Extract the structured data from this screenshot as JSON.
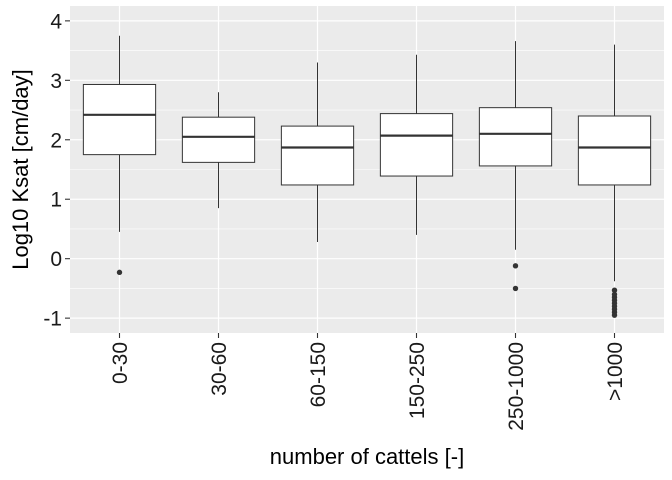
{
  "chart_data": {
    "type": "boxplot",
    "xlabel": "number of cattels [-]",
    "ylabel": "Log10 Ksat [cm/day]",
    "ylim": [
      -1.25,
      4.25
    ],
    "yticks": [
      -1,
      0,
      1,
      2,
      3,
      4
    ],
    "ytick_labels": [
      "-1",
      "0",
      "1",
      "2",
      "3",
      "4"
    ],
    "grid": true,
    "background": "#ebebeb",
    "grid_color": "#ffffff",
    "box_fill": "#ffffff",
    "line_color": "#333333",
    "categories": [
      "0-30",
      "30-60",
      "60-150",
      "150-250",
      "250-1000",
      ">1000"
    ],
    "boxes": [
      {
        "category": "0-30",
        "whisker_low": 0.45,
        "q1": 1.75,
        "median": 2.42,
        "q3": 2.93,
        "whisker_high": 3.75,
        "outliers": [
          -0.23
        ]
      },
      {
        "category": "30-60",
        "whisker_low": 0.85,
        "q1": 1.62,
        "median": 2.05,
        "q3": 2.38,
        "whisker_high": 2.8,
        "outliers": []
      },
      {
        "category": "60-150",
        "whisker_low": 0.28,
        "q1": 1.24,
        "median": 1.87,
        "q3": 2.23,
        "whisker_high": 3.3,
        "outliers": []
      },
      {
        "category": "150-250",
        "whisker_low": 0.4,
        "q1": 1.39,
        "median": 2.07,
        "q3": 2.44,
        "whisker_high": 3.43,
        "outliers": []
      },
      {
        "category": "250-1000",
        "whisker_low": 0.15,
        "q1": 1.56,
        "median": 2.1,
        "q3": 2.54,
        "whisker_high": 3.66,
        "outliers": [
          -0.12,
          -0.5
        ]
      },
      {
        "category": ">1000",
        "whisker_low": -0.38,
        "q1": 1.24,
        "median": 1.87,
        "q3": 2.4,
        "whisker_high": 3.6,
        "outliers": [
          -0.53,
          -0.6,
          -0.65,
          -0.7,
          -0.75,
          -0.8,
          -0.85,
          -0.9,
          -0.95
        ]
      }
    ]
  }
}
